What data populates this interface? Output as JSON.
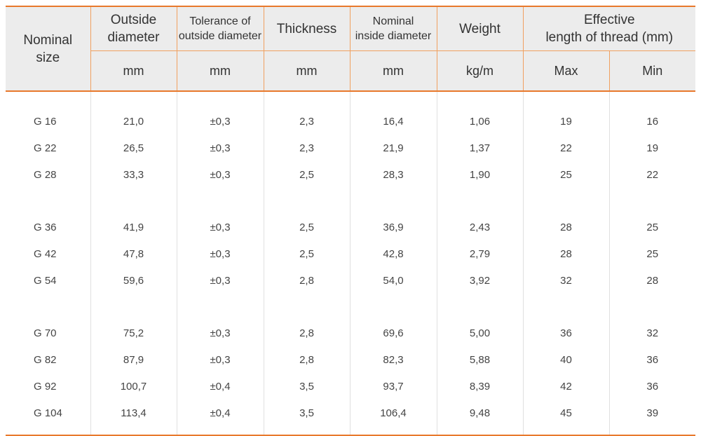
{
  "header": {
    "nominal_size": [
      "Nominal",
      "size"
    ],
    "outside_diameter": [
      "Outside",
      "diameter"
    ],
    "tolerance": [
      "Tolerance of",
      "outside diameter"
    ],
    "thickness": "Thickness",
    "inside_diameter": [
      "Nominal",
      "inside diameter"
    ],
    "weight": "Weight",
    "effective_length": [
      "Effective",
      "length of thread (mm)"
    ],
    "units": {
      "outside_diameter": "mm",
      "tolerance": "mm",
      "thickness": "mm",
      "inside_diameter": "mm",
      "weight": "kg/m",
      "max": "Max",
      "min": "Min"
    }
  },
  "groups": [
    [
      [
        "G 16",
        "21,0",
        "±0,3",
        "2,3",
        "16,4",
        "1,06",
        "19",
        "16"
      ],
      [
        "G 22",
        "26,5",
        "±0,3",
        "2,3",
        "21,9",
        "1,37",
        "22",
        "19"
      ],
      [
        "G 28",
        "33,3",
        "±0,3",
        "2,5",
        "28,3",
        "1,90",
        "25",
        "22"
      ]
    ],
    [
      [
        "G 36",
        "41,9",
        "±0,3",
        "2,5",
        "36,9",
        "2,43",
        "28",
        "25"
      ],
      [
        "G 42",
        "47,8",
        "±0,3",
        "2,5",
        "42,8",
        "2,79",
        "28",
        "25"
      ],
      [
        "G 54",
        "59,6",
        "±0,3",
        "2,8",
        "54,0",
        "3,92",
        "32",
        "28"
      ]
    ],
    [
      [
        "G 70",
        "75,2",
        "±0,3",
        "2,8",
        "69,6",
        "5,00",
        "36",
        "32"
      ],
      [
        "G 82",
        "87,9",
        "±0,3",
        "2,8",
        "82,3",
        "5,88",
        "40",
        "36"
      ],
      [
        "G 92",
        "100,7",
        "±0,4",
        "3,5",
        "93,7",
        "8,39",
        "42",
        "36"
      ],
      [
        "G 104",
        "113,4",
        "±0,4",
        "3,5",
        "106,4",
        "9,48",
        "45",
        "39"
      ]
    ]
  ]
}
